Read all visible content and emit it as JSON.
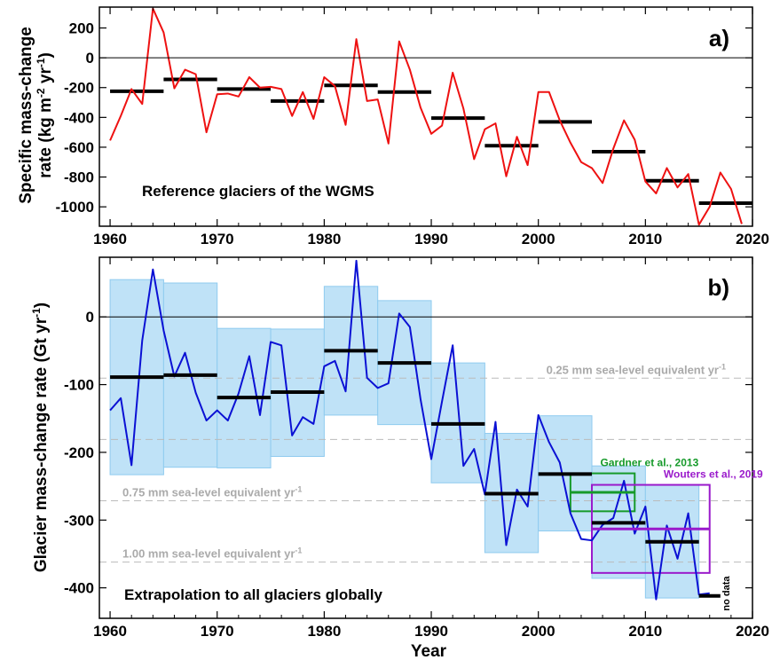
{
  "colors": {
    "annual_a": "#ee1111",
    "annual_b": "#0b11d4",
    "pentad_mean": "#000000",
    "uncertainty_fill": "#bfe2f7",
    "uncertainty_edge": "#8fcbef",
    "sle_lines": "#bbbbbb",
    "sle_text": "#aaaaaa",
    "gardner": "#169a2a",
    "wouters": "#9a1acb"
  },
  "chart_data": [
    {
      "panel": "a)",
      "type": "line",
      "ylabel_line1": "Specific mass-change",
      "ylabel_line2": "rate (kg m",
      "ylabel_sup1": "-2",
      "ylabel_mid": " yr",
      "ylabel_sup2": "-1",
      "ylabel_end": ")",
      "annotation": "Reference glaciers of the WGMS",
      "xlim": [
        1959,
        2020
      ],
      "ylim": [
        -1130,
        340
      ],
      "xticks": [
        1960,
        1970,
        1980,
        1990,
        2000,
        2010,
        2020
      ],
      "yticks": [
        200,
        0,
        -200,
        -400,
        -600,
        -800,
        -1000
      ],
      "zero_line": true,
      "annual": {
        "x": [
          1960,
          1961,
          1962,
          1963,
          1964,
          1965,
          1966,
          1967,
          1968,
          1969,
          1970,
          1971,
          1972,
          1973,
          1974,
          1975,
          1976,
          1977,
          1978,
          1979,
          1980,
          1981,
          1982,
          1983,
          1984,
          1985,
          1986,
          1987,
          1988,
          1989,
          1990,
          1991,
          1992,
          1993,
          1994,
          1995,
          1996,
          1997,
          1998,
          1999,
          2000,
          2001,
          2002,
          2003,
          2004,
          2005,
          2006,
          2007,
          2008,
          2009,
          2010,
          2011,
          2012,
          2013,
          2014,
          2015,
          2016,
          2017,
          2018,
          2019
        ],
        "y": [
          -555,
          -390,
          -210,
          -310,
          330,
          170,
          -205,
          -80,
          -110,
          -500,
          -245,
          -240,
          -260,
          -130,
          -200,
          -195,
          -210,
          -390,
          -230,
          -410,
          -130,
          -190,
          -450,
          125,
          -290,
          -280,
          -575,
          110,
          -80,
          -335,
          -510,
          -455,
          -100,
          -340,
          -680,
          -480,
          -440,
          -795,
          -530,
          -720,
          -230,
          -230,
          -420,
          -570,
          -700,
          -740,
          -840,
          -610,
          -420,
          -550,
          -830,
          -910,
          -740,
          -870,
          -780,
          -1120,
          -1000,
          -770,
          -880,
          -1115
        ]
      },
      "pentads": [
        {
          "start": 1960,
          "end": 1965,
          "value": -225
        },
        {
          "start": 1965,
          "end": 1970,
          "value": -145
        },
        {
          "start": 1970,
          "end": 1975,
          "value": -210
        },
        {
          "start": 1975,
          "end": 1980,
          "value": -290
        },
        {
          "start": 1980,
          "end": 1985,
          "value": -185
        },
        {
          "start": 1985,
          "end": 1990,
          "value": -230
        },
        {
          "start": 1990,
          "end": 1995,
          "value": -405
        },
        {
          "start": 1995,
          "end": 2000,
          "value": -590
        },
        {
          "start": 2000,
          "end": 2005,
          "value": -430
        },
        {
          "start": 2005,
          "end": 2010,
          "value": -630
        },
        {
          "start": 2010,
          "end": 2015,
          "value": -825
        },
        {
          "start": 2015,
          "end": 2020,
          "value": -975
        }
      ]
    },
    {
      "panel": "b)",
      "type": "line",
      "ylabel_main": "Glacier mass-change rate (Gt yr",
      "ylabel_sup": "-1",
      "ylabel_end": ")",
      "xlabel": "Year",
      "annotation": "Extrapolation to all glaciers globally",
      "xlim": [
        1959,
        2020
      ],
      "ylim": [
        -445,
        88
      ],
      "xticks": [
        1960,
        1970,
        1980,
        1990,
        2000,
        2010,
        2020
      ],
      "yticks": [
        0,
        -100,
        -200,
        -300,
        -400
      ],
      "zero_line": true,
      "no_data_label": "no data",
      "sea_level_lines": [
        {
          "value": -90.5,
          "label": "0.25 mm sea-level equivalent yr",
          "sup": "-1",
          "label_side": "right"
        },
        {
          "value": -181,
          "label": "",
          "sup": "",
          "label_side": "none"
        },
        {
          "value": -271.5,
          "label": "0.75 mm sea-level equivalent yr",
          "sup": "-1",
          "label_side": "left"
        },
        {
          "value": -362,
          "label": "1.00 mm sea-level equivalent yr",
          "sup": "-1",
          "label_side": "left"
        }
      ],
      "annual": {
        "x": [
          1960,
          1961,
          1962,
          1963,
          1964,
          1965,
          1966,
          1967,
          1968,
          1969,
          1970,
          1971,
          1972,
          1973,
          1974,
          1975,
          1976,
          1977,
          1978,
          1979,
          1980,
          1981,
          1982,
          1983,
          1984,
          1985,
          1986,
          1987,
          1988,
          1989,
          1990,
          1991,
          1992,
          1993,
          1994,
          1995,
          1996,
          1997,
          1998,
          1999,
          2000,
          2001,
          2002,
          2003,
          2004,
          2005,
          2006,
          2007,
          2008,
          2009,
          2010,
          2011,
          2012,
          2013,
          2014,
          2015,
          2016
        ],
        "y": [
          -138,
          -120,
          -219,
          -35,
          70,
          -20,
          -88,
          -53,
          -112,
          -153,
          -138,
          -153,
          -113,
          -58,
          -145,
          -37,
          -42,
          -175,
          -148,
          -158,
          -73,
          -65,
          -110,
          83,
          -90,
          -105,
          -98,
          5,
          -15,
          -122,
          -210,
          -125,
          -42,
          -220,
          -195,
          -262,
          -155,
          -337,
          -255,
          -280,
          -145,
          -185,
          -215,
          -290,
          -328,
          -330,
          -307,
          -297,
          -242,
          -320,
          -280,
          -417,
          -308,
          -357,
          -290,
          -410,
          -408
        ]
      },
      "pentads": [
        {
          "start": 1960,
          "end": 1965,
          "value": -89,
          "lower": -233,
          "upper": 55
        },
        {
          "start": 1965,
          "end": 1970,
          "value": -86,
          "lower": -222,
          "upper": 50
        },
        {
          "start": 1970,
          "end": 1975,
          "value": -119,
          "lower": -223,
          "upper": -17
        },
        {
          "start": 1975,
          "end": 1980,
          "value": -111,
          "lower": -206,
          "upper": -18
        },
        {
          "start": 1980,
          "end": 1985,
          "value": -50,
          "lower": -145,
          "upper": 45
        },
        {
          "start": 1985,
          "end": 1990,
          "value": -68,
          "lower": -159,
          "upper": 24
        },
        {
          "start": 1990,
          "end": 1995,
          "value": -158,
          "lower": -245,
          "upper": -68
        },
        {
          "start": 1995,
          "end": 2000,
          "value": -261,
          "lower": -348,
          "upper": -172
        },
        {
          "start": 2000,
          "end": 2005,
          "value": -232,
          "lower": -316,
          "upper": -146
        },
        {
          "start": 2005,
          "end": 2010,
          "value": -304,
          "lower": -386,
          "upper": -220
        },
        {
          "start": 2010,
          "end": 2015,
          "value": -332,
          "lower": -415,
          "upper": -248
        },
        {
          "start": 2015,
          "end": 2017,
          "value": -412
        }
      ],
      "studies": [
        {
          "name": "Gardner et al., 2013",
          "start": 2003,
          "end": 2009,
          "value": -259,
          "lower": -287,
          "upper": -231
        },
        {
          "name": "Wouters et al., 2019",
          "start": 2005,
          "end": 2016,
          "value": -313,
          "lower": -378,
          "upper": -248
        }
      ]
    }
  ]
}
